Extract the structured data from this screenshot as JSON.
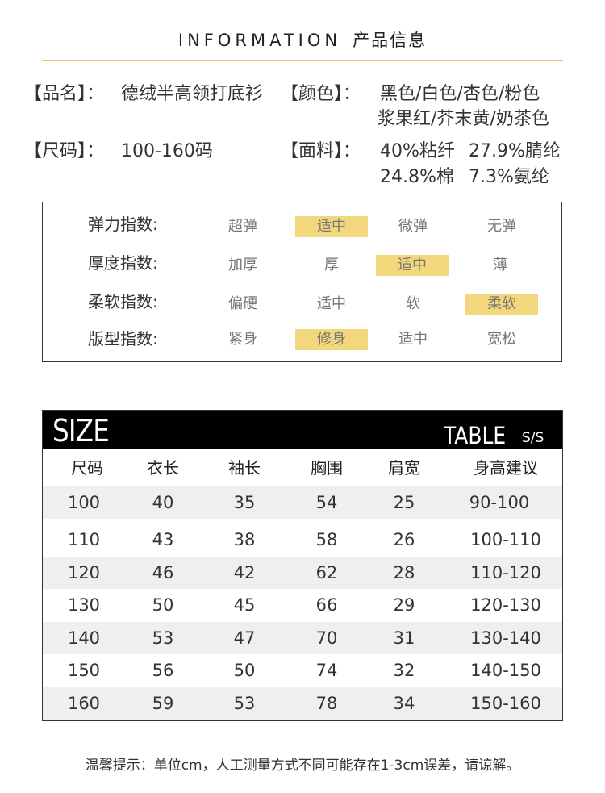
{
  "header": {
    "title_en": "INFORMATION",
    "title_cn": "产品信息"
  },
  "info": {
    "name_label": "【品名】：",
    "name_value": "德绒半高领打底衫",
    "color_label": "【颜色】：",
    "color_line1": "黑色/白色/杏色/粉色",
    "color_line2": "浆果红/芥末黄/奶茶色",
    "size_label": "【尺码】：",
    "size_value": "100-160码",
    "fabric_label": "【面料】：",
    "fabric_1": "40%粘纤",
    "fabric_2": "27.9%腈纶",
    "fabric_3": "24.8%棉",
    "fabric_4": "7.3%氨纶"
  },
  "indices": [
    {
      "label": "弹力指数:",
      "options": [
        "超弹",
        "适中",
        "微弹",
        "无弹"
      ],
      "selected": 1
    },
    {
      "label": "厚度指数:",
      "options": [
        "加厚",
        "厚",
        "适中",
        "薄"
      ],
      "selected": 2
    },
    {
      "label": "柔软指数:",
      "options": [
        "偏硬",
        "适中",
        "软",
        "柔软"
      ],
      "selected": 3
    },
    {
      "label": "版型指数:",
      "options": [
        "紧身",
        "修身",
        "适中",
        "宽松"
      ],
      "selected": 1
    }
  ],
  "size_table": {
    "banner_left": "SIZE",
    "banner_right": "TABLE",
    "banner_sub": "S/S",
    "headers": [
      "尺码",
      "衣长",
      "袖长",
      "胸围",
      "肩宽",
      "身高建议"
    ],
    "rows": [
      [
        "100",
        "40",
        "35",
        "54",
        "25",
        "90-100"
      ],
      [
        "110",
        "43",
        "38",
        "58",
        "26",
        "100-110"
      ],
      [
        "120",
        "46",
        "42",
        "62",
        "28",
        "110-120"
      ],
      [
        "130",
        "50",
        "45",
        "66",
        "29",
        "120-130"
      ],
      [
        "140",
        "53",
        "47",
        "70",
        "31",
        "130-140"
      ],
      [
        "150",
        "56",
        "50",
        "74",
        "32",
        "140-150"
      ],
      [
        "160",
        "59",
        "53",
        "78",
        "34",
        "150-160"
      ]
    ]
  },
  "note": "温馨提示：单位cm，人工测量方式不同可能存在1-3cm误差，请谅解。",
  "colors": {
    "accent": "#f3d77d",
    "line": "#e7c968",
    "banner": "#000000",
    "row_shade": "#efefef"
  }
}
